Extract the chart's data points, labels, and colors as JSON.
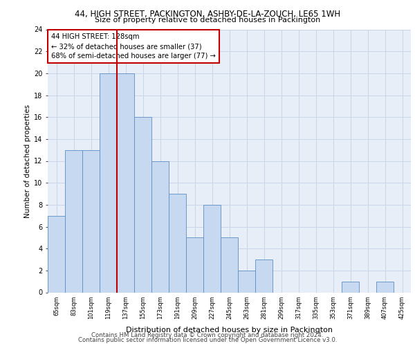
{
  "title1": "44, HIGH STREET, PACKINGTON, ASHBY-DE-LA-ZOUCH, LE65 1WH",
  "title2": "Size of property relative to detached houses in Packington",
  "xlabel": "Distribution of detached houses by size in Packington",
  "ylabel": "Number of detached properties",
  "categories": [
    "65sqm",
    "83sqm",
    "101sqm",
    "119sqm",
    "137sqm",
    "155sqm",
    "173sqm",
    "191sqm",
    "209sqm",
    "227sqm",
    "245sqm",
    "263sqm",
    "281sqm",
    "299sqm",
    "317sqm",
    "335sqm",
    "353sqm",
    "371sqm",
    "389sqm",
    "407sqm",
    "425sqm"
  ],
  "values": [
    7,
    13,
    13,
    20,
    20,
    16,
    12,
    9,
    5,
    8,
    5,
    2,
    3,
    0,
    0,
    0,
    0,
    1,
    0,
    1,
    0
  ],
  "bar_color": "#c6d9f1",
  "bar_edge_color": "#5b8ec4",
  "highlight_line_color": "#c00000",
  "annotation_text": "44 HIGH STREET: 128sqm\n← 32% of detached houses are smaller (37)\n68% of semi-detached houses are larger (77) →",
  "annotation_box_color": "#c00000",
  "ylim": [
    0,
    24
  ],
  "yticks": [
    0,
    2,
    4,
    6,
    8,
    10,
    12,
    14,
    16,
    18,
    20,
    22,
    24
  ],
  "grid_color": "#c8d4e8",
  "background_color": "#e8eef8",
  "footer1": "Contains HM Land Registry data © Crown copyright and database right 2024.",
  "footer2": "Contains public sector information licensed under the Open Government Licence v3.0."
}
